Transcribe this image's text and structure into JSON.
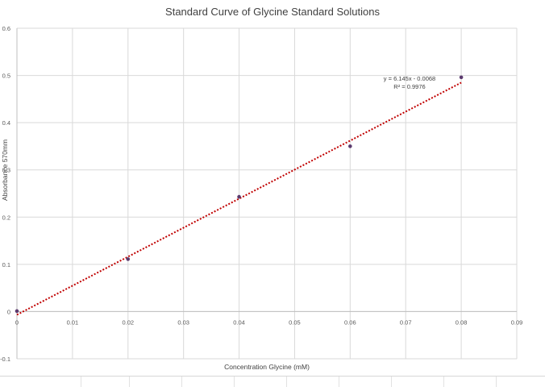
{
  "chart_data": {
    "type": "scatter",
    "title": "Standard Curve of Glycine Standard Solutions",
    "xlabel": "Concentration Glycine (mM)",
    "ylabel": "Absorbance 570mm",
    "xlim": [
      0,
      0.09
    ],
    "ylim": [
      -0.1,
      0.6
    ],
    "x_ticks": [
      "0",
      "0.01",
      "0.02",
      "0.03",
      "0.04",
      "0.05",
      "0.06",
      "0.07",
      "0.08",
      "0.09"
    ],
    "y_ticks": [
      "-0.1",
      "0",
      "0.1",
      "0.2",
      "0.3",
      "0.4",
      "0.5",
      "0.6"
    ],
    "grid": true,
    "legend": "none",
    "series": [
      {
        "x": [
          0,
          0.02,
          0.04,
          0.06,
          0.08
        ],
        "y": [
          0.001,
          0.111,
          0.243,
          0.35,
          0.496
        ],
        "color": "#5b3a6e"
      }
    ],
    "trendline": {
      "type": "linear",
      "slope": 6.145,
      "intercept": -0.0068,
      "color": "#c00000",
      "style": "dotted",
      "equation": "y = 6.145x - 0.0068",
      "r_squared": "R² = 0.9976"
    }
  }
}
